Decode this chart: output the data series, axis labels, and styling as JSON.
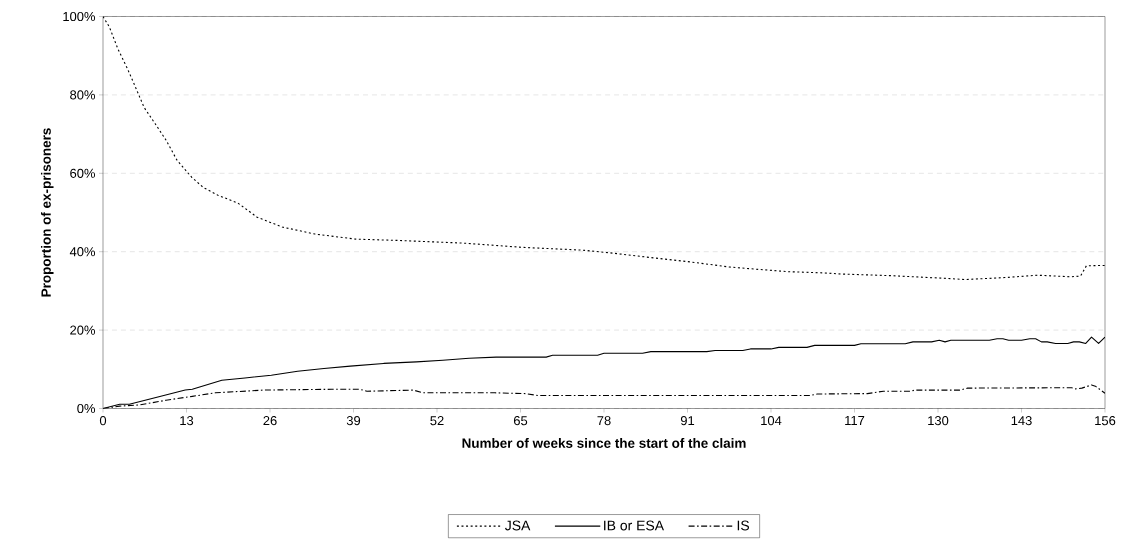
{
  "chart_data": {
    "type": "line",
    "xlabel": "Number of weeks since the start of the claim",
    "ylabel": "Proportion of ex-prisoners",
    "xlim": [
      0,
      156
    ],
    "xticks": [
      0,
      13,
      26,
      39,
      52,
      65,
      78,
      91,
      104,
      117,
      130,
      143,
      156
    ],
    "ylim": [
      0,
      100
    ],
    "yticks": [
      {
        "value": 0,
        "label": "0%"
      },
      {
        "value": 20,
        "label": "20%"
      },
      {
        "value": 40,
        "label": "40%"
      },
      {
        "value": 60,
        "label": "60%"
      },
      {
        "value": 80,
        "label": "80%"
      },
      {
        "value": 100,
        "label": "100%"
      }
    ],
    "grid": "y",
    "legend": "bottom",
    "marker": "none",
    "series": [
      {
        "name": "JSA",
        "color": "#000000",
        "line_style": "dotted",
        "x": [
          0,
          1,
          2.3,
          3.8,
          5,
          6.4,
          8.1,
          9.8,
          11.5,
          13.8,
          15.6,
          17.9,
          21,
          24,
          27.9,
          33,
          39.4,
          45.5,
          56,
          65.4,
          74.6,
          79,
          85.3,
          91.4,
          97.5,
          102,
          106.7,
          112,
          115,
          122.5,
          130,
          134.3,
          140.4,
          145.5,
          150.7,
          152.2,
          153.1,
          156
        ],
        "values": [
          100,
          97.3,
          91.8,
          86.7,
          82.2,
          76.8,
          72.7,
          68.5,
          63.4,
          59,
          56.4,
          54.4,
          52.4,
          48.8,
          46.3,
          44.5,
          43.2,
          42.9,
          42.2,
          41.1,
          40.4,
          39.7,
          38.5,
          37.4,
          36.1,
          35.5,
          34.9,
          34.6,
          34.3,
          33.9,
          33.3,
          32.9,
          33.4,
          34,
          33.6,
          33.8,
          36.4,
          36.5
        ]
      },
      {
        "name": "IB or ESA",
        "color": "#000000",
        "line_style": "solid",
        "x": [
          0,
          2.6,
          4.1,
          8.7,
          12.8,
          13.9,
          18.5,
          22.1,
          26.2,
          30.3,
          34.4,
          38.5,
          43.7,
          48.8,
          52.9,
          57,
          61.2,
          69,
          70,
          77,
          78,
          84,
          85.3,
          94,
          95.3,
          99.6,
          100.8,
          104,
          105.2,
          109.6,
          110.8,
          117,
          118,
          124.9,
          126.1,
          129,
          130.2,
          131.1,
          132,
          138,
          139.2,
          140.1,
          141,
          143,
          144.3,
          145.2,
          146.1,
          147,
          148.3,
          150.2,
          151.1,
          152,
          153,
          153.9,
          155,
          156
        ],
        "values": [
          0,
          1.1,
          1.1,
          3,
          4.7,
          4.9,
          7.2,
          7.8,
          8.5,
          9.5,
          10.2,
          10.8,
          11.5,
          11.9,
          12.3,
          12.8,
          13.1,
          13.1,
          13.6,
          13.6,
          14.1,
          14.1,
          14.5,
          14.5,
          14.8,
          14.8,
          15.2,
          15.2,
          15.6,
          15.6,
          16.1,
          16.1,
          16.5,
          16.5,
          17,
          17,
          17.4,
          17,
          17.4,
          17.4,
          17.8,
          17.8,
          17.4,
          17.4,
          17.8,
          17.8,
          17,
          17,
          16.6,
          16.6,
          17,
          17,
          16.6,
          18.2,
          16.6,
          18.2
        ]
      },
      {
        "name": "IS",
        "color": "#000000",
        "line_style": "dashdot",
        "x": [
          0,
          2.6,
          5.7,
          9.8,
          13.9,
          17.5,
          25,
          35.5,
          40,
          41.1,
          48.3,
          49.8,
          61,
          65.8,
          67.7,
          110,
          111.2,
          119,
          121.5,
          125.8,
          126.4,
          133.4,
          134.6,
          150.8,
          151.4,
          152.4,
          153.9,
          154.5,
          156
        ],
        "values": [
          0,
          0.6,
          0.9,
          2.1,
          3.1,
          4,
          4.7,
          4.9,
          4.9,
          4.4,
          4.7,
          4,
          4,
          3.8,
          3.3,
          3.3,
          3.7,
          3.8,
          4.4,
          4.4,
          4.7,
          4.7,
          5.2,
          5.3,
          5,
          5.2,
          6,
          5.7,
          3.9
        ]
      }
    ]
  }
}
